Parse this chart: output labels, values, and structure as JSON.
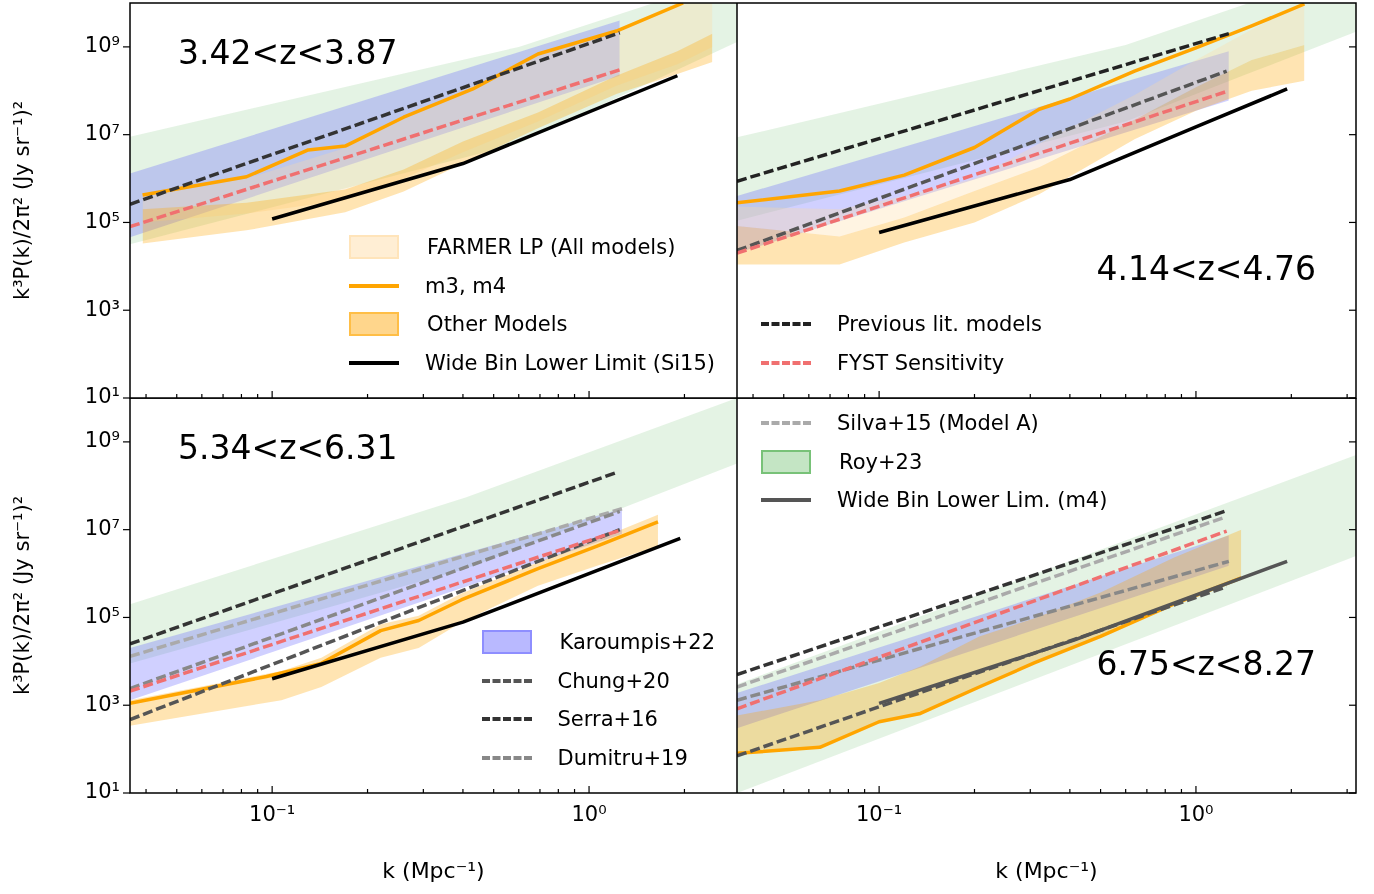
{
  "chart_data": [
    {
      "type": "line",
      "ylabel": "k³P(k)/2π² (Jy sr⁻¹)²",
      "log": "xy",
      "tick_labels": "y",
      "legend": "bottom right",
      "marker": "none",
      "annotations": [
        "3.42<z<3.87"
      ],
      "xlim": [
        0.0356,
        2.93
      ],
      "ylim": [
        10,
        10000000000.0
      ],
      "xticks": [
        {
          "value": 0.04,
          "label": null
        },
        {
          "value": 0.05,
          "label": null
        },
        {
          "value": 0.06,
          "label": null
        },
        {
          "value": 0.07,
          "label": null
        },
        {
          "value": 0.08,
          "label": null
        },
        {
          "value": 0.09,
          "label": null
        },
        {
          "value": 0.1,
          "label": null
        },
        {
          "value": 0.2,
          "label": null
        },
        {
          "value": 0.3,
          "label": null
        },
        {
          "value": 0.4,
          "label": null
        },
        {
          "value": 0.5,
          "label": null
        },
        {
          "value": 0.6,
          "label": null
        },
        {
          "value": 0.7,
          "label": null
        },
        {
          "value": 0.8,
          "label": null
        },
        {
          "value": 0.9,
          "label": null
        },
        {
          "value": 1,
          "label": null
        },
        {
          "value": 2,
          "label": null
        }
      ],
      "yticks": [
        {
          "value": 10,
          "label": "10¹"
        },
        {
          "value": 1000,
          "label": "10³"
        },
        {
          "value": 100000,
          "label": "10⁵"
        },
        {
          "value": 10000000,
          "label": "10⁷"
        },
        {
          "value": 1000000000,
          "label": "10⁹"
        }
      ],
      "series": [
        {
          "type": "line",
          "color": "#2ca02c",
          "x": [
            0.0356,
            0.6,
            1.6,
            2.93
          ],
          "values": [
            null,
            null,
            null,
            null
          ],
          "upper": [
            9000000.0,
            1000000000.0,
            10000000000.0,
            10000000000.0
          ],
          "lower": [
            32000.0,
            6300000.0,
            170000000.0,
            1300000000.0
          ]
        },
        {
          "type": "line",
          "color": "#6464ff",
          "x": [
            0.0356,
            1.25
          ],
          "values": [
            null,
            null
          ],
          "upper": [
            1300000.0,
            4000000000.0
          ],
          "lower": [
            46000.0,
            220000000.0
          ]
        },
        {
          "type": "line",
          "name": "FARMER LP (All models)",
          "color": "#ffd9a0",
          "x": [
            0.039,
            0.083,
            0.17,
            0.26,
            0.4,
            0.69,
            1.22,
            1.9,
            2.45
          ],
          "values": [
            null,
            null,
            null,
            null,
            null,
            null,
            null,
            null,
            null
          ],
          "upper": [
            420000.0,
            1000000.0,
            5000000.0,
            25000000.0,
            100000000.0,
            630000000.0,
            2500000000.0,
            10000000000.0,
            10000000000.0
          ],
          "lower": [
            100000.0,
            160000.0,
            320000.0,
            1000000.0,
            4000000.0,
            20000000.0,
            130000000.0,
            400000000.0,
            1000000000.0
          ]
        },
        {
          "type": "line",
          "name": "m3, m4",
          "color": "#ffa500",
          "x": [
            0.039,
            0.083,
            0.13,
            0.17,
            0.26,
            0.43,
            0.69,
            1.22,
            1.98
          ],
          "values": [
            420000.0,
            1100000.0,
            4500000.0,
            5500000.0,
            25000000.0,
            110000000.0,
            690000000.0,
            2300000000.0,
            10000000000.0
          ]
        },
        {
          "type": "line",
          "name": "Other Models",
          "color": "#ffa500",
          "x": [
            0.039,
            0.083,
            0.17,
            0.26,
            0.4,
            0.69,
            1.22,
            1.9,
            2.45
          ],
          "values": [
            null,
            null,
            null,
            null,
            null,
            null,
            null,
            null,
            null
          ],
          "upper": [
            200000.0,
            280000.0,
            560000.0,
            1600000.0,
            7000000.0,
            32000000.0,
            220000000.0,
            800000000.0,
            2000000000.0
          ],
          "lower": [
            33000.0,
            66000.0,
            170000.0,
            510000.0,
            2200000.0,
            14000000.0,
            85000000.0,
            240000000.0,
            450000000.0
          ]
        },
        {
          "type": "line",
          "color": "#333333",
          "line_style": "dashed",
          "x": [
            0.0356,
            1.25
          ],
          "values": [
            260000.0,
            2100000000.0
          ]
        },
        {
          "type": "line",
          "color": "#f07070",
          "line_style": "dashed",
          "x": [
            0.0356,
            1.25
          ],
          "values": [
            80000.0,
            300000000.0
          ]
        },
        {
          "type": "line",
          "name": "Wide Bin Lower Limit (Si15)",
          "color": "#000000",
          "x": [
            0.1,
            0.4,
            1.9
          ],
          "values": [
            120000.0,
            2200000.0,
            220000000.0
          ]
        }
      ]
    },
    {
      "type": "line",
      "log": "xy",
      "tick_labels": false,
      "legend": "bottom left",
      "marker": "none",
      "annotations": [
        "4.14<z<4.76"
      ],
      "xlim": [
        0.0356,
        3.2
      ],
      "ylim": [
        10,
        10000000000.0
      ],
      "xticks": [
        {
          "value": 0.04,
          "label": null
        },
        {
          "value": 0.05,
          "label": null
        },
        {
          "value": 0.06,
          "label": null
        },
        {
          "value": 0.07,
          "label": null
        },
        {
          "value": 0.08,
          "label": null
        },
        {
          "value": 0.09,
          "label": null
        },
        {
          "value": 0.1,
          "label": null
        },
        {
          "value": 0.2,
          "label": null
        },
        {
          "value": 0.3,
          "label": null
        },
        {
          "value": 0.4,
          "label": null
        },
        {
          "value": 0.5,
          "label": null
        },
        {
          "value": 0.6,
          "label": null
        },
        {
          "value": 0.7,
          "label": null
        },
        {
          "value": 0.8,
          "label": null
        },
        {
          "value": 0.9,
          "label": null
        },
        {
          "value": 1,
          "label": null
        },
        {
          "value": 2,
          "label": null
        },
        {
          "value": 3,
          "label": null
        }
      ],
      "yticks": [
        {
          "value": 10,
          "label": null
        },
        {
          "value": 1000,
          "label": null
        },
        {
          "value": 100000,
          "label": null
        },
        {
          "value": 10000000,
          "label": null
        },
        {
          "value": 1000000000,
          "label": null
        }
      ],
      "series": [
        {
          "type": "line",
          "color": "#2ca02c",
          "x": [
            0.0356,
            0.6,
            1.47,
            3.2
          ],
          "values": [
            null,
            null,
            null,
            null
          ],
          "upper": [
            8700000.0,
            1100000000.0,
            10000000000.0,
            10000000000.0
          ],
          "lower": [
            110000.0,
            20000000.0,
            250000000.0,
            2200000000.0
          ]
        },
        {
          "type": "line",
          "color": "#6464ff",
          "x": [
            0.0356,
            1.27
          ],
          "values": [
            null,
            null
          ],
          "upper": [
            400000.0,
            800000000.0
          ],
          "lower": [
            20000.0,
            60000000.0
          ]
        },
        {
          "type": "line",
          "color": "#ffd9a0",
          "x": [
            0.0356,
            0.075,
            0.12,
            0.2,
            0.32,
            0.64,
            1.0,
            1.5,
            2.2
          ],
          "values": [
            null,
            null,
            null,
            null,
            null,
            null,
            null,
            null,
            null
          ],
          "upper": [
            230000.0,
            200000.0,
            400000.0,
            1000000.0,
            6300000.0,
            80000000.0,
            500000000.0,
            2500000000.0,
            10000000000.0
          ],
          "lower": [
            83000.0,
            48000.0,
            130000.0,
            520000.0,
            1800000.0,
            22000000.0,
            120000000.0,
            500000000.0,
            1100000000.0
          ]
        },
        {
          "type": "line",
          "color": "#ffa500",
          "x": [
            0.0356,
            0.075,
            0.12,
            0.2,
            0.32,
            0.64,
            1.0,
            1.5,
            2.2
          ],
          "values": [
            null,
            null,
            null,
            null,
            null,
            null,
            null,
            null,
            null
          ],
          "upper": [
            83000.0,
            48000.0,
            130000.0,
            520000.0,
            1800000.0,
            22000000.0,
            120000000.0,
            500000000.0,
            1100000000.0
          ],
          "lower": [
            11000.0,
            11000.0,
            35000.0,
            100000.0,
            440000.0,
            7900000.0,
            35000000.0,
            100000000.0,
            170000000.0
          ]
        },
        {
          "type": "line",
          "color": "#ffa500",
          "x": [
            0.0356,
            0.075,
            0.12,
            0.2,
            0.32,
            0.4,
            0.64,
            1.0,
            1.5,
            2.2
          ],
          "values": [
            280000.0,
            520000.0,
            1200000.0,
            5100000.0,
            38000000.0,
            65000000.0,
            280000000.0,
            950000000.0,
            3000000000.0,
            9500000000.0
          ]
        },
        {
          "type": "line",
          "name": "Previous lit. models",
          "color": "#222222",
          "line_style": "dashed",
          "x": [
            0.0356,
            1.27
          ],
          "values": [
            870000.0,
            2000000000.0
          ]
        },
        {
          "type": "line",
          "color": "#555555",
          "line_style": "dashed",
          "x": [
            0.0356,
            1.25
          ],
          "values": [
            23000.0,
            280000000.0
          ]
        },
        {
          "type": "line",
          "name": "FYST Sensitivity",
          "color": "#f07070",
          "line_style": "dashed",
          "x": [
            0.0356,
            1.27
          ],
          "values": [
            20000.0,
            100000000.0
          ]
        },
        {
          "type": "line",
          "color": "#000000",
          "x": [
            0.1,
            0.4,
            1.0,
            1.94
          ],
          "values": [
            59000.0,
            950000.0,
            15000000.0,
            110000000.0
          ]
        }
      ]
    },
    {
      "type": "line",
      "xlabel": "k (Mpc⁻¹)",
      "ylabel": "k³P(k)/2π² (Jy sr⁻¹)²",
      "log": "xy",
      "legend": "bottom right",
      "marker": "none",
      "annotations": [
        "5.34<z<6.31"
      ],
      "xlim": [
        0.0356,
        2.93
      ],
      "ylim": [
        10,
        10000000000.0
      ],
      "xticks": [
        {
          "value": 0.04,
          "label": null
        },
        {
          "value": 0.05,
          "label": null
        },
        {
          "value": 0.06,
          "label": null
        },
        {
          "value": 0.07,
          "label": null
        },
        {
          "value": 0.08,
          "label": null
        },
        {
          "value": 0.09,
          "label": null
        },
        {
          "value": 0.1,
          "label": "10⁻¹"
        },
        {
          "value": 0.2,
          "label": null
        },
        {
          "value": 0.3,
          "label": null
        },
        {
          "value": 0.4,
          "label": null
        },
        {
          "value": 0.5,
          "label": null
        },
        {
          "value": 0.6,
          "label": null
        },
        {
          "value": 0.7,
          "label": null
        },
        {
          "value": 0.8,
          "label": null
        },
        {
          "value": 0.9,
          "label": null
        },
        {
          "value": 1,
          "label": "10⁰"
        },
        {
          "value": 2,
          "label": null
        }
      ],
      "yticks": [
        {
          "value": 10,
          "label": "10¹"
        },
        {
          "value": 1000,
          "label": "10³"
        },
        {
          "value": 100000,
          "label": "10⁵"
        },
        {
          "value": 10000000,
          "label": "10⁷"
        },
        {
          "value": 1000000000,
          "label": "10⁹"
        }
      ],
      "series": [
        {
          "type": "line",
          "color": "#2ca02c",
          "x": [
            0.0356,
            0.41,
            2.93
          ],
          "values": [
            null,
            null,
            null
          ],
          "upper": [
            200000.0,
            55000000.0,
            10000000000.0
          ],
          "lower": [
            8900.0,
            1300000.0,
            320000000.0
          ]
        },
        {
          "type": "line",
          "name": "Karoumpis+22",
          "color": "#6464ff",
          "x": [
            0.0356,
            1.27
          ],
          "values": [
            null,
            null
          ],
          "upper": [
            20000.0,
            30000000.0
          ],
          "lower": [
            1300.0,
            8000000.0
          ]
        },
        {
          "type": "line",
          "color": "#ffa500",
          "x": [
            0.0356,
            0.107,
            0.143,
            0.22,
            0.29,
            0.395,
            0.69,
            1.06,
            1.65
          ],
          "values": [
            null,
            null,
            null,
            null,
            null,
            null,
            null,
            null,
            null
          ],
          "upper": [
            1300.0,
            6000.0,
            12000.0,
            70000.0,
            110000.0,
            350000.0,
            1800000.0,
            6000000.0,
            22000000.0
          ],
          "lower": [
            340.0,
            1300.0,
            2600.0,
            12000.0,
            20000.0,
            77000.0,
            530000.0,
            1500000.0,
            4200000.0
          ]
        },
        {
          "type": "line",
          "color": "#ffa500",
          "x": [
            0.0356,
            0.096,
            0.143,
            0.22,
            0.29,
            0.395,
            0.69,
            1.06,
            1.65
          ],
          "values": [
            1100.0,
            4500.0,
            9000.0,
            50000.0,
            85000.0,
            250000.0,
            1300000.0,
            4200000.0,
            15000000.0
          ]
        },
        {
          "type": "line",
          "name": "Chung+20",
          "color": "#555555",
          "line_style": "dashed",
          "x": [
            0.0356,
            1.25
          ],
          "values": [
            470.0,
            10000000.0
          ]
        },
        {
          "type": "line",
          "name": "Serra+16",
          "color": "#333333",
          "line_style": "dashed",
          "x": [
            0.0356,
            1.22
          ],
          "values": [
            25000.0,
            200000000.0
          ]
        },
        {
          "type": "line",
          "color": "#aaaaaa",
          "line_style": "dashed",
          "x": [
            0.0356,
            1.27
          ],
          "values": [
            13000.0,
            30000000.0
          ]
        },
        {
          "type": "line",
          "name": "Dumitru+19",
          "color": "#888888",
          "line_style": "dashed",
          "x": [
            0.0356,
            1.25
          ],
          "values": [
            2400.0,
            26000000.0
          ]
        },
        {
          "type": "line",
          "color": "#f07070",
          "line_style": "dashed",
          "x": [
            0.0356,
            1.27
          ],
          "values": [
            2100.0,
            10000000.0
          ]
        },
        {
          "type": "line",
          "color": "#000000",
          "x": [
            0.1,
            0.4,
            1.94
          ],
          "values": [
            4000.0,
            78000.0,
            6300000.0
          ]
        }
      ]
    },
    {
      "type": "line",
      "xlabel": "k (Mpc⁻¹)",
      "log": "xy",
      "tick_labels": "x",
      "legend": "top left",
      "marker": "none",
      "annotations": [
        "6.75<z<8.27"
      ],
      "xlim": [
        0.0356,
        3.2
      ],
      "ylim": [
        10,
        10000000000.0
      ],
      "xticks": [
        {
          "value": 0.04,
          "label": null
        },
        {
          "value": 0.05,
          "label": null
        },
        {
          "value": 0.06,
          "label": null
        },
        {
          "value": 0.07,
          "label": null
        },
        {
          "value": 0.08,
          "label": null
        },
        {
          "value": 0.09,
          "label": null
        },
        {
          "value": 0.1,
          "label": "10⁻¹"
        },
        {
          "value": 0.2,
          "label": null
        },
        {
          "value": 0.3,
          "label": null
        },
        {
          "value": 0.4,
          "label": null
        },
        {
          "value": 0.5,
          "label": null
        },
        {
          "value": 0.6,
          "label": null
        },
        {
          "value": 0.7,
          "label": null
        },
        {
          "value": 0.8,
          "label": null
        },
        {
          "value": 0.9,
          "label": null
        },
        {
          "value": 1,
          "label": "10⁰"
        },
        {
          "value": 2,
          "label": null
        },
        {
          "value": 3,
          "label": null
        }
      ],
      "yticks": [
        {
          "value": 10,
          "label": null
        },
        {
          "value": 1000,
          "label": null
        },
        {
          "value": 100000,
          "label": null
        },
        {
          "value": 10000000,
          "label": null
        },
        {
          "value": 1000000000,
          "label": null
        }
      ],
      "series": [
        {
          "type": "line",
          "name": "Silva+15 (Model A)",
          "color": "#aaaaaa",
          "line_style": "dashed",
          "x": [
            0.0356,
            1.23
          ],
          "values": [
            2600.0,
            19000000.0
          ]
        },
        {
          "type": "line",
          "name": "Roy+23",
          "color": "#2ca02c",
          "x": [
            0.0356,
            3.2
          ],
          "values": [
            null,
            null
          ],
          "upper": [
            3000.0,
            500000000.0
          ],
          "lower": [
            10,
            2500000.0
          ]
        },
        {
          "type": "line",
          "color": "#6464ff",
          "x": [
            0.0356,
            1.27
          ],
          "values": [
            null,
            null
          ],
          "upper": [
            1900.0,
            7400000.0
          ],
          "lower": [
            300.0,
            1500000.0
          ]
        },
        {
          "type": "line",
          "color": "#ffa500",
          "x": [
            0.0356,
            0.065,
            0.1,
            0.135,
            0.207,
            0.31,
            0.5,
            0.85,
            1.39
          ],
          "values": [
            null,
            null,
            null,
            null,
            null,
            null,
            null,
            null,
            null
          ],
          "upper": [
            580.0,
            1300.0,
            3200.0,
            7600.0,
            37000.0,
            96000.0,
            370000.0,
            2300000.0,
            10000000.0
          ],
          "lower": [
            80,
            110,
            420,
            650,
            2600.0,
            9300.0,
            37000.0,
            200000.0,
            800000.0
          ]
        },
        {
          "type": "line",
          "color": "#ffa500",
          "x": [
            0.0356,
            0.065,
            0.1,
            0.135,
            0.207,
            0.31,
            0.5,
            0.85,
            1.39
          ],
          "values": [
            80,
            110,
            420,
            650,
            2600.0,
            9300.0,
            37000.0,
            200000.0,
            800000.0
          ]
        },
        {
          "type": "line",
          "color": "#333333",
          "line_style": "dashed",
          "x": [
            0.0356,
            1.23
          ],
          "values": [
            5000.0,
            26000000.0
          ]
        },
        {
          "type": "line",
          "color": "#888888",
          "line_style": "dashed",
          "x": [
            0.0356,
            1.27
          ],
          "values": [
            1300.0,
            1900000.0
          ]
        },
        {
          "type": "line",
          "color": "#f07070",
          "line_style": "dashed",
          "x": [
            0.0356,
            1.25
          ],
          "values": [
            830.0,
            9300000.0
          ]
        },
        {
          "type": "line",
          "color": "#555555",
          "line_style": "dashed",
          "x": [
            0.0356,
            1.25
          ],
          "values": [
            70,
            500000.0
          ]
        },
        {
          "type": "line",
          "name": "Wide Bin Lower Lim. (m4)",
          "color": "#555555",
          "x": [
            0.1,
            0.41,
            1.94
          ],
          "values": [
            1100.0,
            30000.0,
            1900000.0
          ]
        }
      ]
    }
  ]
}
